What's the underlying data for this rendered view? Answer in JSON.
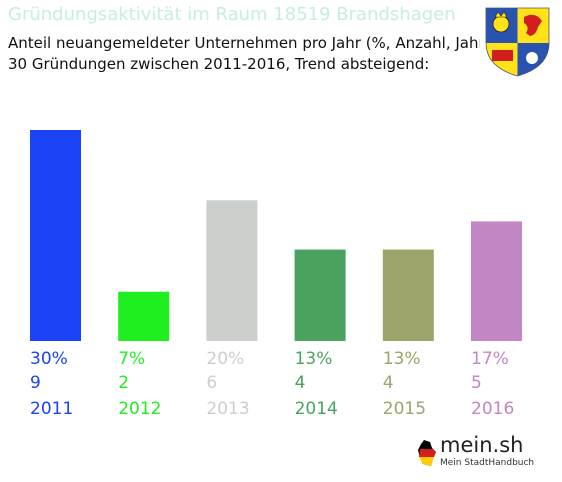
{
  "header": {
    "title": "Gründungsaktivität im Raum 18519 Brandshagen",
    "subtitle_line1": "Anteil neuangemeldeter Unternehmen pro Jahr (%, Anzahl, Jahr)",
    "subtitle_line2": "30 Gründungen zwischen 2011-2016, Trend absteigend:"
  },
  "crest": {
    "icon": "coat-of-arms-icon",
    "colors": [
      "#2a53b0",
      "#ffe21a",
      "#ffffff",
      "#d21e1e"
    ]
  },
  "logo": {
    "text": "mein.sh",
    "tagline": "Mein StadtHandbuch",
    "icon": "germany-flag-icon"
  },
  "chart_data": {
    "type": "bar",
    "categories": [
      "2011",
      "2012",
      "2013",
      "2014",
      "2015",
      "2016"
    ],
    "values": [
      30,
      7,
      20,
      13,
      13,
      17
    ],
    "value_labels": [
      "30%",
      "7%",
      "20%",
      "13%",
      "13%",
      "17%"
    ],
    "counts": [
      "9",
      "2",
      "6",
      "4",
      "4",
      "5"
    ],
    "colors": [
      "#1a43f5",
      "#1fef1f",
      "#cbcfcc",
      "#49a35e",
      "#9da46a",
      "#c386c4"
    ],
    "ylim": [
      0,
      30
    ],
    "grid": false,
    "legend": "none"
  }
}
